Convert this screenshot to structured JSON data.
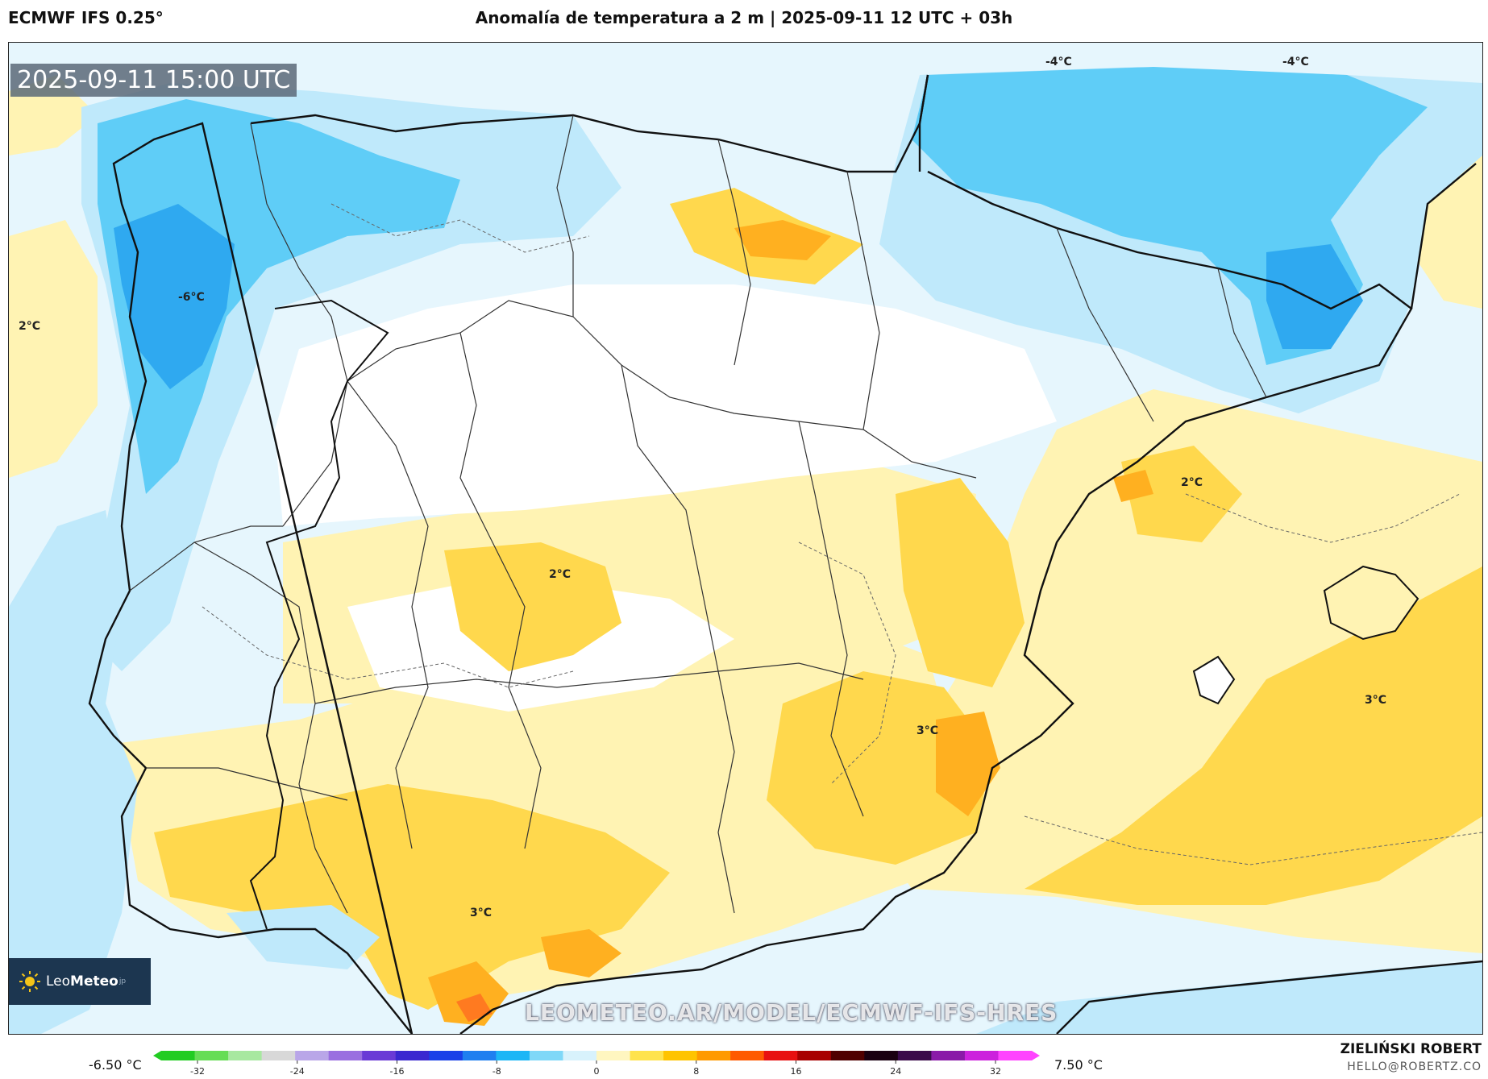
{
  "header": {
    "model": "ECMWF IFS 0.25°",
    "title": "Anomalía de temperatura a 2 m | 2025-09-11 12 UTC + 03h"
  },
  "map": {
    "valid_time": "2025-09-11 15:00 UTC",
    "watermark": "LEOMETEO.AR/MODEL/ECMWF-IFS-HRES",
    "logo": {
      "name_light": "Leo",
      "name_bold": "Meteo",
      "suffix": "jp"
    },
    "labels": {
      "l1": "-4°C",
      "l2": "-4°C",
      "l3": "-6°C",
      "l4": "2°C",
      "l5": "2°C",
      "l6": "2°C",
      "l7": "3°C",
      "l8": "3°C",
      "l9": "3°C"
    }
  },
  "colorbar": {
    "min_label": "-6.50 °C",
    "max_label": "7.50 °C",
    "ticks": [
      "-32",
      "-24",
      "-16",
      "-8",
      "0",
      "8",
      "16",
      "24",
      "32"
    ],
    "colors": [
      "#22cc22",
      "#66dd55",
      "#a8e8a0",
      "#d8d8d8",
      "#b9a6e8",
      "#9a6fe0",
      "#6a3ad6",
      "#3a28d0",
      "#1a40e8",
      "#1f7ff0",
      "#1cb6f6",
      "#7fd8f8",
      "#d8f2fc",
      "#fff6c0",
      "#ffe34d",
      "#ffc400",
      "#ff9a00",
      "#ff5a00",
      "#e81010",
      "#a80000",
      "#500000",
      "#1a0010",
      "#3a0a4a",
      "#8a1aa8",
      "#cc22dd",
      "#ff44ff"
    ]
  },
  "credits": {
    "author": "ZIELIŃSKI ROBERT",
    "email": "HELLO@ROBERTZ.CO"
  }
}
